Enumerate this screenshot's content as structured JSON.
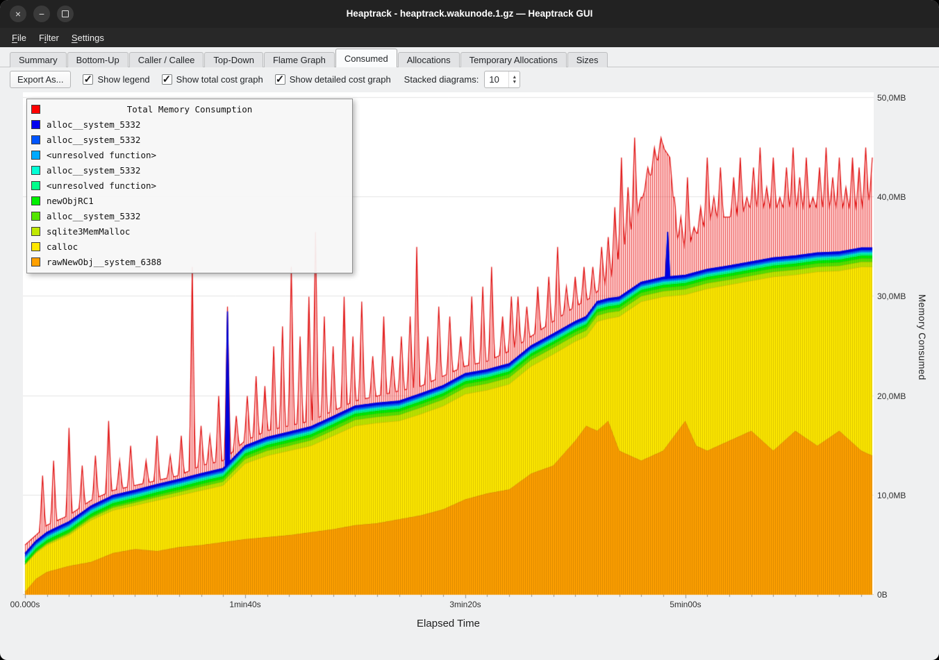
{
  "window": {
    "title": "Heaptrack - heaptrack.wakunode.1.gz — Heaptrack GUI"
  },
  "menubar": {
    "items": [
      {
        "label": "File",
        "accel_index": 0
      },
      {
        "label": "Filter",
        "accel_index": 1
      },
      {
        "label": "Settings",
        "accel_index": 0
      }
    ]
  },
  "tabs": [
    {
      "label": "Summary",
      "active": false
    },
    {
      "label": "Bottom-Up",
      "active": false
    },
    {
      "label": "Caller / Callee",
      "active": false
    },
    {
      "label": "Top-Down",
      "active": false
    },
    {
      "label": "Flame Graph",
      "active": false
    },
    {
      "label": "Consumed",
      "active": true
    },
    {
      "label": "Allocations",
      "active": false
    },
    {
      "label": "Temporary Allocations",
      "active": false
    },
    {
      "label": "Sizes",
      "active": false
    }
  ],
  "toolbar": {
    "export_button": "Export As...",
    "checkboxes": [
      {
        "label": "Show legend",
        "checked": true
      },
      {
        "label": "Show total cost graph",
        "checked": true
      },
      {
        "label": "Show detailed cost graph",
        "checked": true
      }
    ],
    "stacked_label": "Stacked diagrams:",
    "stacked_value": "10"
  },
  "legend": {
    "title": "Total Memory Consumption",
    "title_color": "#ff0000",
    "entries": [
      {
        "label": "alloc__system_5332",
        "color": "#0000ef"
      },
      {
        "label": "alloc__system_5332",
        "color": "#0055ff"
      },
      {
        "label": "<unresolved function>",
        "color": "#00aaff"
      },
      {
        "label": "alloc__system_5332",
        "color": "#00ffd5"
      },
      {
        "label": "<unresolved function>",
        "color": "#00ff8c"
      },
      {
        "label": "newObjRC1",
        "color": "#00f000"
      },
      {
        "label": "alloc__system_5332",
        "color": "#55e600"
      },
      {
        "label": "sqlite3MemMalloc",
        "color": "#c0e800"
      },
      {
        "label": "calloc",
        "color": "#ffe800"
      },
      {
        "label": "rawNewObj__system_6388",
        "color": "#ffa000"
      }
    ]
  },
  "chart_data": {
    "type": "area",
    "title": "Total Memory Consumption",
    "xlabel": "Elapsed Time",
    "ylabel": "Memory Consumed",
    "x_range_s": [
      0,
      385
    ],
    "y_range_mb": [
      0,
      50
    ],
    "legend_position": "top-left",
    "grid": "horizontal",
    "x_ticks": [
      {
        "s": 0,
        "label": "00.000s"
      },
      {
        "s": 100,
        "label": "1min40s"
      },
      {
        "s": 200,
        "label": "3min20s"
      },
      {
        "s": 300,
        "label": "5min00s"
      }
    ],
    "y_ticks": [
      {
        "mb": 0,
        "label": "0B"
      },
      {
        "mb": 10,
        "label": "10,0MB"
      },
      {
        "mb": 20,
        "label": "20,0MB"
      },
      {
        "mb": 30,
        "label": "30,0MB"
      },
      {
        "mb": 40,
        "label": "40,0MB"
      },
      {
        "mb": 50,
        "label": "50,0MB"
      }
    ],
    "times_s": [
      0,
      5,
      10,
      15,
      20,
      30,
      40,
      50,
      60,
      70,
      80,
      90,
      100,
      110,
      120,
      130,
      140,
      150,
      160,
      170,
      180,
      190,
      200,
      210,
      220,
      230,
      240,
      250,
      255,
      260,
      265,
      270,
      280,
      290,
      300,
      305,
      310,
      320,
      330,
      340,
      350,
      360,
      370,
      380,
      385
    ],
    "stack_bottom_up": [
      {
        "name": "rawNewObj__system_6388",
        "color": "#ffa000",
        "mb": [
          0.3,
          1.6,
          2.3,
          2.6,
          2.9,
          3.3,
          4.2,
          4.6,
          4.4,
          4.8,
          5.0,
          5.3,
          5.6,
          5.8,
          6.0,
          6.3,
          6.6,
          7.0,
          7.2,
          7.6,
          8.0,
          8.6,
          9.6,
          10.2,
          10.6,
          12.2,
          13.0,
          15.5,
          17.0,
          16.5,
          17.5,
          14.5,
          13.5,
          14.5,
          17.5,
          15.0,
          14.5,
          15.5,
          16.5,
          14.5,
          16.5,
          15.0,
          16.5,
          14.5,
          14.0
        ]
      },
      {
        "name": "calloc",
        "color": "#ffe800",
        "mb": [
          2.7,
          2.6,
          2.7,
          2.9,
          3.1,
          4.2,
          4.3,
          4.4,
          5.1,
          5.2,
          5.5,
          5.7,
          7.6,
          8.2,
          8.5,
          8.7,
          9.4,
          10.0,
          10.1,
          9.9,
          10.2,
          10.4,
          10.6,
          10.4,
          10.6,
          10.8,
          11.2,
          10.0,
          9.0,
          11.0,
          10.3,
          13.5,
          16.0,
          15.5,
          12.7,
          15.5,
          16.3,
          15.7,
          15.1,
          17.5,
          15.7,
          17.5,
          16.1,
          18.5,
          19.0
        ]
      },
      {
        "name": "sqlite3MemMalloc",
        "color": "#c0e800",
        "mb": [
          0.06,
          0.1,
          0.14,
          0.16,
          0.16,
          0.22,
          0.27,
          0.27,
          0.33,
          0.33,
          0.38,
          0.38,
          0.44,
          0.5,
          0.5,
          0.55,
          0.55,
          0.6,
          0.6,
          0.6,
          0.65,
          0.65,
          0.65,
          0.65,
          0.65,
          0.65,
          0.65,
          0.6,
          0.6,
          0.6,
          0.6,
          0.55,
          0.55,
          0.55,
          0.55,
          0.55,
          0.55,
          0.5,
          0.5,
          0.5,
          0.5,
          0.5,
          0.5,
          0.5,
          0.5
        ]
      },
      {
        "name": "alloc__system_5332",
        "color": "#55e600",
        "mb": [
          0.06,
          0.08,
          0.1,
          0.12,
          0.14,
          0.16,
          0.18,
          0.2,
          0.22,
          0.24,
          0.26,
          0.28,
          0.3,
          0.3,
          0.32,
          0.32,
          0.34,
          0.34,
          0.34,
          0.34,
          0.35,
          0.35,
          0.35,
          0.35,
          0.35,
          0.35,
          0.35,
          0.35,
          0.35,
          0.35,
          0.35,
          0.35,
          0.35,
          0.35,
          0.35,
          0.35,
          0.35,
          0.35,
          0.35,
          0.35,
          0.35,
          0.35,
          0.35,
          0.35,
          0.35
        ]
      },
      {
        "name": "newObjRC1",
        "color": "#00f000",
        "mb": 0.28
      },
      {
        "name": "<unresolved function>",
        "color": "#00ff8c",
        "mb": 0.18
      },
      {
        "name": "alloc__system_5332",
        "color": "#00ffd5",
        "mb": 0.12
      },
      {
        "name": "<unresolved function>",
        "color": "#00aaff",
        "mb": 0.12
      },
      {
        "name": "alloc__system_5332",
        "color": "#0055ff",
        "mb": 0.15
      },
      {
        "name": "alloc__system_5332",
        "color": "#0000ef",
        "mb": 0.2,
        "spikes_abs_mb": [
          [
            92,
            28.5
          ],
          [
            292,
            36.5
          ]
        ]
      }
    ],
    "total_series": {
      "name": "Total Memory Consumption",
      "color": "#ff0000",
      "base_mb": [
        [
          0,
          5
        ],
        [
          10,
          7
        ],
        [
          20,
          8
        ],
        [
          30,
          9.5
        ],
        [
          40,
          10.5
        ],
        [
          50,
          11
        ],
        [
          60,
          11.5
        ],
        [
          70,
          12
        ],
        [
          80,
          13
        ],
        [
          90,
          13.5
        ],
        [
          100,
          15.5
        ],
        [
          110,
          16.5
        ],
        [
          120,
          17
        ],
        [
          130,
          17.5
        ],
        [
          140,
          18.5
        ],
        [
          150,
          19.5
        ],
        [
          160,
          20
        ],
        [
          170,
          20.5
        ],
        [
          180,
          21
        ],
        [
          190,
          22
        ],
        [
          200,
          23
        ],
        [
          210,
          23.5
        ],
        [
          220,
          24.5
        ],
        [
          230,
          26
        ],
        [
          240,
          27.5
        ],
        [
          250,
          29
        ],
        [
          258,
          30
        ],
        [
          266,
          32
        ],
        [
          270,
          34
        ],
        [
          274,
          36
        ],
        [
          278,
          38
        ],
        [
          282,
          41
        ],
        [
          286,
          43
        ],
        [
          290,
          45
        ],
        [
          293,
          44
        ],
        [
          296,
          36
        ],
        [
          300,
          35
        ],
        [
          304,
          36
        ],
        [
          308,
          37
        ],
        [
          312,
          38
        ],
        [
          320,
          38
        ],
        [
          330,
          39
        ],
        [
          340,
          39
        ],
        [
          350,
          39
        ],
        [
          360,
          39
        ],
        [
          370,
          39
        ],
        [
          380,
          39
        ],
        [
          385,
          40
        ]
      ],
      "spikes_mb": [
        [
          8,
          12
        ],
        [
          13,
          13.5
        ],
        [
          20,
          16.8
        ],
        [
          26,
          13
        ],
        [
          32,
          14
        ],
        [
          38,
          17.5
        ],
        [
          43,
          13.5
        ],
        [
          48,
          15
        ],
        [
          55,
          13.5
        ],
        [
          60,
          16
        ],
        [
          66,
          14
        ],
        [
          71,
          16
        ],
        [
          76,
          33
        ],
        [
          80,
          17
        ],
        [
          84,
          16
        ],
        [
          88,
          20
        ],
        [
          92,
          29
        ],
        [
          96,
          18
        ],
        [
          101,
          20
        ],
        [
          105,
          22
        ],
        [
          109,
          21
        ],
        [
          113,
          25
        ],
        [
          117,
          27
        ],
        [
          121,
          33
        ],
        [
          125,
          26
        ],
        [
          129,
          30
        ],
        [
          132,
          36.5
        ],
        [
          136,
          28
        ],
        [
          140,
          25
        ],
        [
          145,
          30
        ],
        [
          149,
          26
        ],
        [
          153,
          29.5
        ],
        [
          158,
          24
        ],
        [
          163,
          28
        ],
        [
          167,
          24
        ],
        [
          171,
          26
        ],
        [
          175,
          28
        ],
        [
          178,
          35
        ],
        [
          183,
          26
        ],
        [
          188,
          29
        ],
        [
          193,
          28
        ],
        [
          198,
          26
        ],
        [
          203,
          30
        ],
        [
          208,
          31
        ],
        [
          212,
          33
        ],
        [
          217,
          28
        ],
        [
          221,
          30
        ],
        [
          224,
          30
        ],
        [
          228,
          29
        ],
        [
          233,
          31
        ],
        [
          238,
          32
        ],
        [
          242,
          35
        ],
        [
          246,
          31
        ],
        [
          250,
          32
        ],
        [
          254,
          33
        ],
        [
          258,
          33
        ],
        [
          262,
          35
        ],
        [
          265,
          36
        ],
        [
          268,
          39
        ],
        [
          271,
          44
        ],
        [
          274,
          41
        ],
        [
          277,
          46
        ],
        [
          280,
          40
        ],
        [
          283,
          43
        ],
        [
          286,
          45
        ],
        [
          289,
          46
        ],
        [
          292,
          44
        ],
        [
          295,
          40
        ],
        [
          298,
          38
        ],
        [
          301,
          42
        ],
        [
          304,
          37
        ],
        [
          307,
          39
        ],
        [
          310,
          44
        ],
        [
          313,
          40
        ],
        [
          316,
          43
        ],
        [
          319,
          38
        ],
        [
          322,
          42
        ],
        [
          325,
          44
        ],
        [
          328,
          40
        ],
        [
          331,
          43
        ],
        [
          334,
          45
        ],
        [
          337,
          41
        ],
        [
          340,
          44
        ],
        [
          343,
          40
        ],
        [
          346,
          43
        ],
        [
          349,
          45
        ],
        [
          352,
          42
        ],
        [
          355,
          44
        ],
        [
          358,
          40
        ],
        [
          361,
          43
        ],
        [
          364,
          45
        ],
        [
          367,
          42
        ],
        [
          370,
          44
        ],
        [
          373,
          41
        ],
        [
          376,
          44
        ],
        [
          379,
          43
        ],
        [
          382,
          45
        ],
        [
          385,
          44
        ]
      ]
    }
  }
}
